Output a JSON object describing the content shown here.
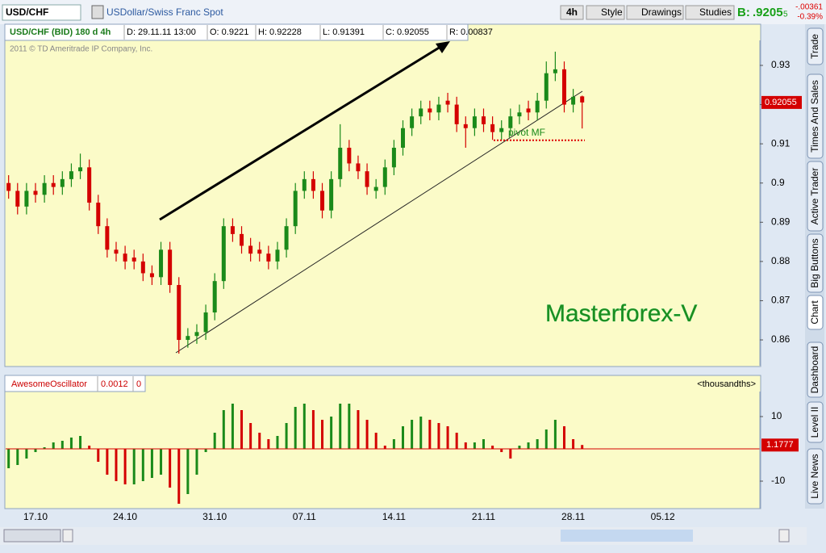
{
  "toolbar": {
    "symbol": "USD/CHF",
    "description": "USDollar/Swiss Franc Spot",
    "interval": "4h",
    "buttons": [
      "Style",
      "Drawings",
      "Studies"
    ],
    "bid_label": "B:",
    "bid": ".9205",
    "bid_last_digit": "5",
    "change": "-.00361",
    "change_pct": "-0.39%"
  },
  "side_tabs": [
    "Trade",
    "Times And Sales",
    "Active Trader",
    "Big Buttons",
    "Chart",
    "Dashboard",
    "Level II",
    "Live News"
  ],
  "chart_data": [
    {
      "type": "candlestick",
      "title": "USD/CHF (BID) 180 d 4h",
      "header": [
        "D: 29.11.11 13:00",
        "O: 0.9221",
        "H: 0.92228",
        "L: 0.91391",
        "C: 0.92055",
        "R: 0.00837"
      ],
      "watermark": "2011 © TD Ameritrade IP Company, Inc.",
      "brand": "Masterforex-V",
      "pivot_label": "pivot MF",
      "pivot_value": 0.9109,
      "up_color": "#1a8a1a",
      "down_color": "#d40000",
      "last_value": 0.92055,
      "categories": [
        null,
        null,
        null,
        "17.10",
        null,
        null,
        null,
        null,
        null,
        null,
        null,
        null,
        null,
        "24.10",
        null,
        null,
        null,
        null,
        null,
        null,
        null,
        null,
        null,
        "31.10",
        null,
        null,
        null,
        null,
        null,
        null,
        null,
        null,
        null,
        "07.11",
        null,
        null,
        null,
        null,
        null,
        null,
        null,
        null,
        null,
        "14.11",
        null,
        null,
        null,
        null,
        null,
        null,
        null,
        null,
        null,
        "21.11",
        null,
        null,
        null,
        null,
        null,
        null,
        null,
        null,
        null,
        "28.11",
        null,
        null,
        null,
        null,
        null,
        null,
        null,
        null,
        null,
        "05.12",
        null,
        null,
        null,
        null,
        null,
        null,
        null,
        null,
        null,
        null
      ],
      "open": [
        0.9,
        0.898,
        0.894,
        0.898,
        0.897,
        0.9,
        0.899,
        0.901,
        0.903,
        0.904,
        0.895,
        0.889,
        0.883,
        0.882,
        0.881,
        0.88,
        0.877,
        0.876,
        0.883,
        0.874,
        0.86,
        0.861,
        0.862,
        0.867,
        0.875,
        0.889,
        0.887,
        0.884,
        0.883,
        0.882,
        0.88,
        0.883,
        0.889,
        0.898,
        0.901,
        0.898,
        0.893,
        0.901,
        0.909,
        0.905,
        0.903,
        0.898,
        0.899,
        0.904,
        0.909,
        0.914,
        0.917,
        0.919,
        0.918,
        0.921,
        0.92,
        0.915,
        0.914,
        0.917,
        0.915,
        0.913,
        0.914,
        0.917,
        0.919,
        0.918,
        0.921,
        0.928,
        0.929,
        0.92,
        0.9221,
        null,
        null,
        null,
        null,
        null,
        null,
        null,
        null,
        null,
        null,
        null,
        null,
        null,
        null,
        null,
        null,
        null,
        null,
        null
      ],
      "high": [
        0.902,
        0.9,
        0.9,
        0.9,
        0.902,
        0.902,
        0.903,
        0.905,
        0.9075,
        0.906,
        0.897,
        0.891,
        0.885,
        0.884,
        0.883,
        0.882,
        0.879,
        0.885,
        0.885,
        0.876,
        0.863,
        0.864,
        0.869,
        0.877,
        0.891,
        0.891,
        0.889,
        0.886,
        0.885,
        0.884,
        0.885,
        0.891,
        0.9,
        0.903,
        0.903,
        0.9,
        0.903,
        0.915,
        0.911,
        0.907,
        0.905,
        0.901,
        0.906,
        0.911,
        0.916,
        0.919,
        0.921,
        0.921,
        0.922,
        0.923,
        0.922,
        0.917,
        0.919,
        0.919,
        0.917,
        0.916,
        0.919,
        0.92,
        0.921,
        0.923,
        0.931,
        0.9335,
        0.931,
        0.924,
        0.92228,
        null,
        null,
        null,
        null,
        null,
        null,
        null,
        null,
        null,
        null,
        null,
        null,
        null,
        null,
        null,
        null,
        null,
        null,
        null
      ],
      "low": [
        0.896,
        0.892,
        0.892,
        0.895,
        0.895,
        0.897,
        0.897,
        0.899,
        0.901,
        0.893,
        0.887,
        0.881,
        0.88,
        0.878,
        0.878,
        0.875,
        0.874,
        0.874,
        0.872,
        0.8565,
        0.858,
        0.859,
        0.86,
        0.865,
        0.873,
        0.885,
        0.882,
        0.88,
        0.88,
        0.878,
        0.878,
        0.881,
        0.887,
        0.896,
        0.896,
        0.891,
        0.891,
        0.899,
        0.903,
        0.901,
        0.897,
        0.896,
        0.897,
        0.902,
        0.907,
        0.912,
        0.915,
        0.916,
        0.916,
        0.918,
        0.913,
        0.909,
        0.912,
        0.913,
        0.911,
        0.911,
        0.912,
        0.915,
        0.916,
        0.916,
        0.919,
        0.926,
        0.918,
        0.918,
        0.91391,
        null,
        null,
        null,
        null,
        null,
        null,
        null,
        null,
        null,
        null,
        null,
        null,
        null,
        null,
        null,
        null,
        null,
        null,
        null
      ],
      "close": [
        0.898,
        0.894,
        0.898,
        0.897,
        0.9,
        0.899,
        0.901,
        0.903,
        0.904,
        0.895,
        0.889,
        0.883,
        0.882,
        0.88,
        0.88,
        0.877,
        0.876,
        0.883,
        0.874,
        0.86,
        0.861,
        0.862,
        0.867,
        0.875,
        0.889,
        0.887,
        0.884,
        0.882,
        0.882,
        0.88,
        0.883,
        0.889,
        0.898,
        0.901,
        0.898,
        0.893,
        0.901,
        0.909,
        0.905,
        0.903,
        0.899,
        0.899,
        0.904,
        0.909,
        0.914,
        0.917,
        0.919,
        0.918,
        0.92,
        0.92,
        0.915,
        0.914,
        0.917,
        0.915,
        0.913,
        0.914,
        0.917,
        0.918,
        0.918,
        0.921,
        0.928,
        0.929,
        0.92,
        0.922,
        0.92055,
        null,
        null,
        null,
        null,
        null,
        null,
        null,
        null,
        null,
        null,
        null,
        null,
        null,
        null,
        null,
        null,
        null,
        null,
        null
      ],
      "ylim": [
        0.85342,
        0.93638
      ],
      "yticks": [
        0.86,
        0.87,
        0.88,
        0.89,
        0.9,
        0.91,
        0.92,
        0.93
      ]
    },
    {
      "type": "bar",
      "title": "AwesomeOscillator",
      "value_text": "0.0012",
      "param": "0",
      "units_label": "<thousandths>",
      "up_color": "#1a8a1a",
      "down_color": "#d40000",
      "zero_color": "#d40000",
      "last_value": 1.1777,
      "values": [
        -6,
        -5,
        -3,
        -1,
        0.5,
        2,
        2.5,
        3.5,
        4,
        1,
        -4,
        -8,
        -10,
        -11,
        -11,
        -10,
        -9,
        -8,
        -12,
        -17,
        -14,
        -8,
        -1,
        5,
        12,
        14,
        12,
        8,
        5,
        3,
        4,
        8,
        13,
        14,
        12,
        9,
        10,
        14,
        14,
        12,
        9,
        5,
        1,
        3,
        7,
        9,
        10,
        9,
        8,
        7,
        5,
        2,
        2,
        3,
        1,
        -1,
        -3,
        1,
        2,
        3,
        6,
        9,
        7,
        3,
        1.2,
        null,
        null,
        null,
        null,
        null,
        null,
        null,
        null,
        null,
        null,
        null,
        null,
        null,
        null,
        null,
        null,
        null,
        null,
        null
      ],
      "ylim": [
        -18.5,
        17.75
      ],
      "yticks": [
        -10,
        10
      ]
    }
  ]
}
